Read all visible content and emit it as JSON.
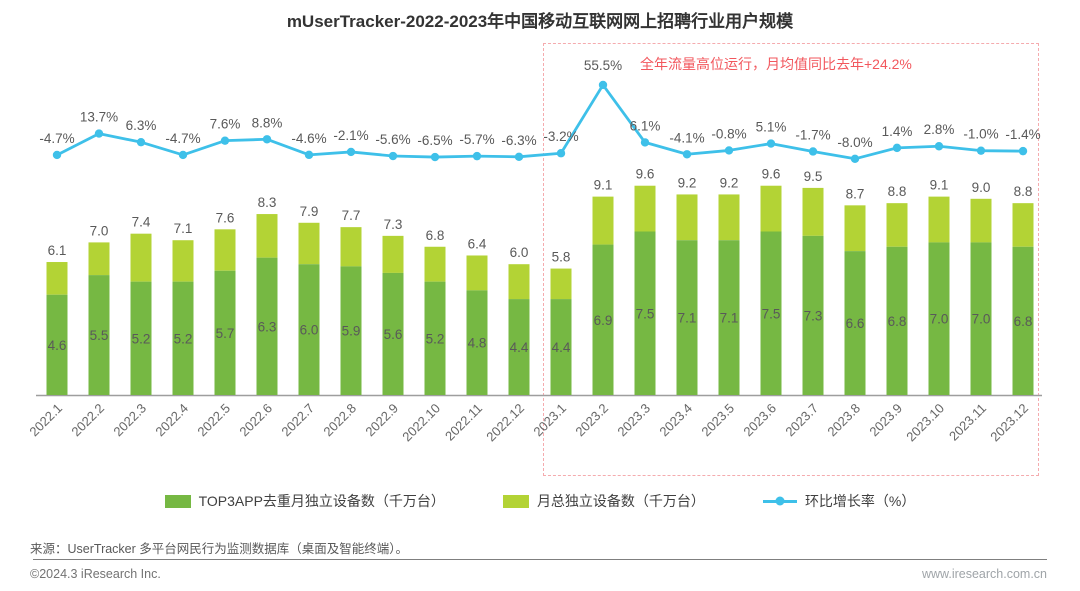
{
  "title": "mUserTracker-2022-2023年中国移动互联网网上招聘行业用户规模",
  "annotation": {
    "text": "全年流量高位运行，月均值同比去年+24.2%",
    "text_color": "#f2575d",
    "box_border_color": "#f5abae"
  },
  "chart_data": {
    "type": "bar",
    "subtype": "stacked-bar-with-line",
    "categories": [
      "2022.1",
      "2022.2",
      "2022.3",
      "2022.4",
      "2022.5",
      "2022.6",
      "2022.7",
      "2022.8",
      "2022.9",
      "2022.10",
      "2022.11",
      "2022.12",
      "2023.1",
      "2023.2",
      "2023.3",
      "2023.4",
      "2023.5",
      "2023.6",
      "2023.7",
      "2023.8",
      "2023.9",
      "2023.10",
      "2023.11",
      "2023.12"
    ],
    "series": [
      {
        "name": "TOP3APP去重月独立设备数（千万台）",
        "type": "bar",
        "stack": "bottom",
        "color": "#76b843",
        "values": [
          4.6,
          5.5,
          5.2,
          5.2,
          5.7,
          6.3,
          6.0,
          5.9,
          5.6,
          5.2,
          4.8,
          4.4,
          4.4,
          6.9,
          7.5,
          7.1,
          7.1,
          7.5,
          7.3,
          6.6,
          6.8,
          7.0,
          7.0,
          6.8
        ]
      },
      {
        "name": "月总独立设备数（千万台）",
        "type": "bar",
        "stack": "total",
        "color": "#b3d335",
        "values": [
          6.1,
          7.0,
          7.4,
          7.1,
          7.6,
          8.3,
          7.9,
          7.7,
          7.3,
          6.8,
          6.4,
          6.0,
          5.8,
          9.1,
          9.6,
          9.2,
          9.2,
          9.6,
          9.5,
          8.7,
          8.8,
          9.1,
          9.0,
          8.8
        ]
      },
      {
        "name": "环比增长率（%）",
        "type": "line",
        "color": "#3ec0e9",
        "values": [
          -4.7,
          13.7,
          6.3,
          -4.7,
          7.6,
          8.8,
          -4.6,
          -2.1,
          -5.6,
          -6.5,
          -5.7,
          -6.3,
          -3.2,
          55.5,
          6.1,
          -4.1,
          -0.8,
          5.1,
          -1.7,
          -8.0,
          1.4,
          2.8,
          -1.0,
          -1.4
        ]
      }
    ],
    "value_label_color": "#595959",
    "axis_label_color": "#666666",
    "axis_color": "#9e9e9e",
    "grid": false,
    "legend_position": "bottom",
    "xlabel": "",
    "ylabel": ""
  },
  "legend": {
    "items": [
      {
        "label": "TOP3APP去重月独立设备数（千万台）",
        "color": "#76b843",
        "swatch": "rect"
      },
      {
        "label": "月总独立设备数（千万台）",
        "color": "#b3d335",
        "swatch": "rect"
      },
      {
        "label": "环比增长率（%）",
        "color": "#3ec0e9",
        "swatch": "line-dot"
      }
    ]
  },
  "source": "来源：UserTracker 多平台网民行为监测数据库（桌面及智能终端）。",
  "footer": {
    "left": "©2024.3 iResearch Inc.",
    "right": "www.iresearch.com.cn"
  }
}
